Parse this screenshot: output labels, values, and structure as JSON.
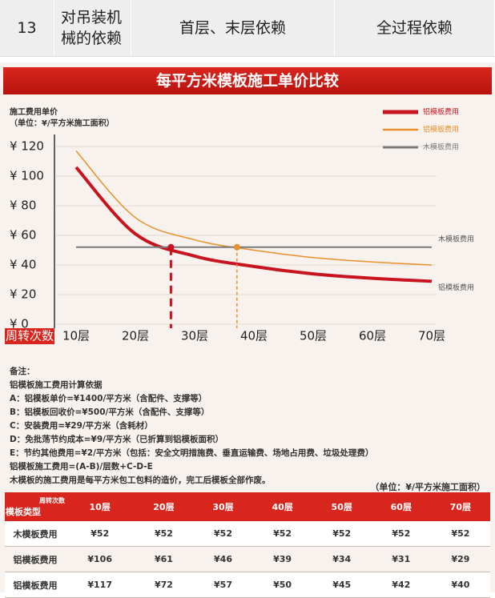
{
  "top_row": [
    "13",
    "对吊装机械的依赖",
    "首层、末层依赖",
    "全过程依赖"
  ],
  "chart_data": {
    "type": "line",
    "title": "每平方米模板施工单价比较",
    "y_label": "施工费用单价",
    "y_unit": "（单位：¥/平方米施工面积）",
    "x_label": "周转次数",
    "categories": [
      "10层",
      "20层",
      "30层",
      "40层",
      "50层",
      "60层",
      "70层"
    ],
    "series": [
      {
        "name": "铝模板费用",
        "color": "#c8141e",
        "values": [
          106,
          61,
          46,
          39,
          34,
          31,
          29
        ],
        "end_label": "铝模板费用"
      },
      {
        "name": "铝模板费用",
        "color": "#e8902a",
        "values": [
          117,
          72,
          57,
          50,
          45,
          42,
          40
        ]
      },
      {
        "name": "木模板费用",
        "color": "#7a7a7a",
        "values": [
          52,
          52,
          52,
          52,
          52,
          52,
          52
        ],
        "end_label": "木模板费用"
      }
    ],
    "ylim": [
      0,
      120
    ],
    "yticks": [
      {
        "value": 0,
        "label": "¥ 0"
      },
      {
        "value": 20,
        "label": "¥ 20"
      },
      {
        "value": 40,
        "label": "¥ 40"
      },
      {
        "value": 60,
        "label": "¥ 60"
      },
      {
        "value": 80,
        "label": "¥ 80"
      },
      {
        "value": 100,
        "label": "¥ 100"
      },
      {
        "value": 120,
        "label": "¥ 120"
      }
    ],
    "grid": true
  },
  "notes": {
    "title": "备注：",
    "lines": [
      "铝模板施工费用计算依据",
      "A：铝模板单价=¥1400/平方米（含配件、支撑等）",
      "B：铝模板回收价=¥500/平方米（含配件、支撑等）",
      "C：安装费用=¥29/平方米（含耗材）",
      "D：免批荡节约成本=¥9/平方米（已折算到铝模板面积）",
      "E：节约其他费用=¥2/平方米（包括：安全文明措施费、垂直运输费、场地占用费、垃圾处理费）",
      "铝模板施工费用=(A-B)/层数+C-D-E",
      "木模板的施工费用是每平方米包工包料的造价，完工后模板全部作废。"
    ]
  },
  "table": {
    "unit": "（单位：¥/平方米施工面积）",
    "corner": [
      "周转次数",
      "模板类型"
    ],
    "columns": [
      "10层",
      "20层",
      "30层",
      "40层",
      "50层",
      "60层",
      "70层"
    ],
    "rows": [
      {
        "label": "木模板费用",
        "values": [
          "¥52",
          "¥52",
          "¥52",
          "¥52",
          "¥52",
          "¥52",
          "¥52"
        ]
      },
      {
        "label": "铝模板费用",
        "values": [
          "¥106",
          "¥61",
          "¥46",
          "¥39",
          "¥34",
          "¥31",
          "¥29"
        ]
      },
      {
        "label": "铝模板费用",
        "values": [
          "¥117",
          "¥72",
          "¥57",
          "¥50",
          "¥45",
          "¥42",
          "¥40"
        ]
      }
    ]
  }
}
